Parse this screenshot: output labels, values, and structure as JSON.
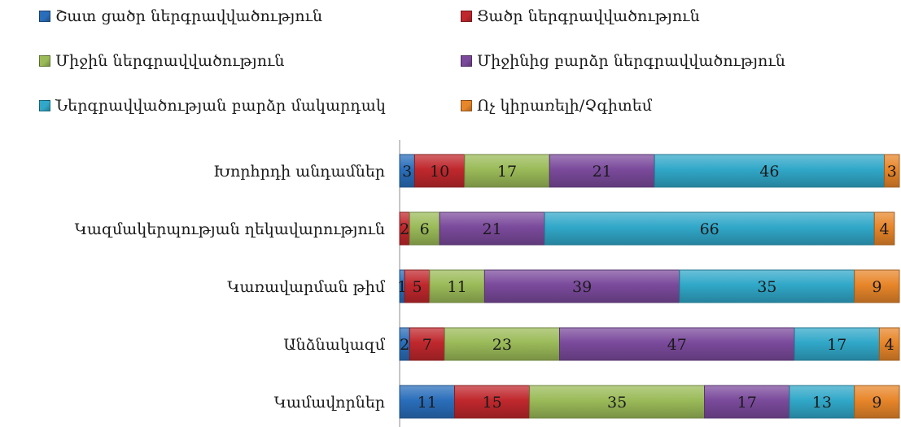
{
  "chart_data": {
    "type": "bar",
    "orientation": "horizontal",
    "stacked": true,
    "percent": true,
    "categories": [
      "Խորհրդի անդամներ",
      "Կազմակերպության ղեկավարություն",
      "Կառավարման թիմ",
      "Անձնակազմ",
      "Կամավորներ"
    ],
    "series": [
      {
        "name": "Շատ ցածր ներգրավվածություն",
        "color": "#2a6ebb",
        "values": [
          3,
          0,
          1,
          2,
          11
        ]
      },
      {
        "name": "Ցածր ներգրավվածություն",
        "color": "#c0282d",
        "values": [
          10,
          2,
          5,
          7,
          15
        ]
      },
      {
        "name": "Միջին ներգրավվածություն",
        "color": "#9bbb59",
        "values": [
          17,
          6,
          11,
          23,
          35
        ]
      },
      {
        "name": "Միջինից բարձր ներգրավվածություն",
        "color": "#7b4a9c",
        "values": [
          21,
          21,
          39,
          47,
          17
        ]
      },
      {
        "name": "Ներգրավվածության բարձր մակարդակ",
        "color": "#31a8c9",
        "values": [
          46,
          66,
          35,
          17,
          13
        ]
      },
      {
        "name": "Ոչ կիրառելի/Չգիտեմ",
        "color": "#e8862a",
        "values": [
          3,
          4,
          9,
          4,
          9
        ]
      }
    ],
    "data_labels": [
      [
        "3",
        "",
        "1",
        "2",
        "11"
      ],
      [
        "10",
        "2",
        "5",
        "7",
        "15"
      ],
      [
        "17",
        "6",
        "11",
        "23",
        "35"
      ],
      [
        "21",
        "21",
        "39",
        "47",
        "17"
      ],
      [
        "46",
        "66",
        "35",
        "17",
        "13"
      ],
      [
        "3",
        "4",
        "9",
        "4",
        "9"
      ]
    ],
    "xlim": [
      0,
      100
    ],
    "legend_position": "top",
    "grid": false
  }
}
